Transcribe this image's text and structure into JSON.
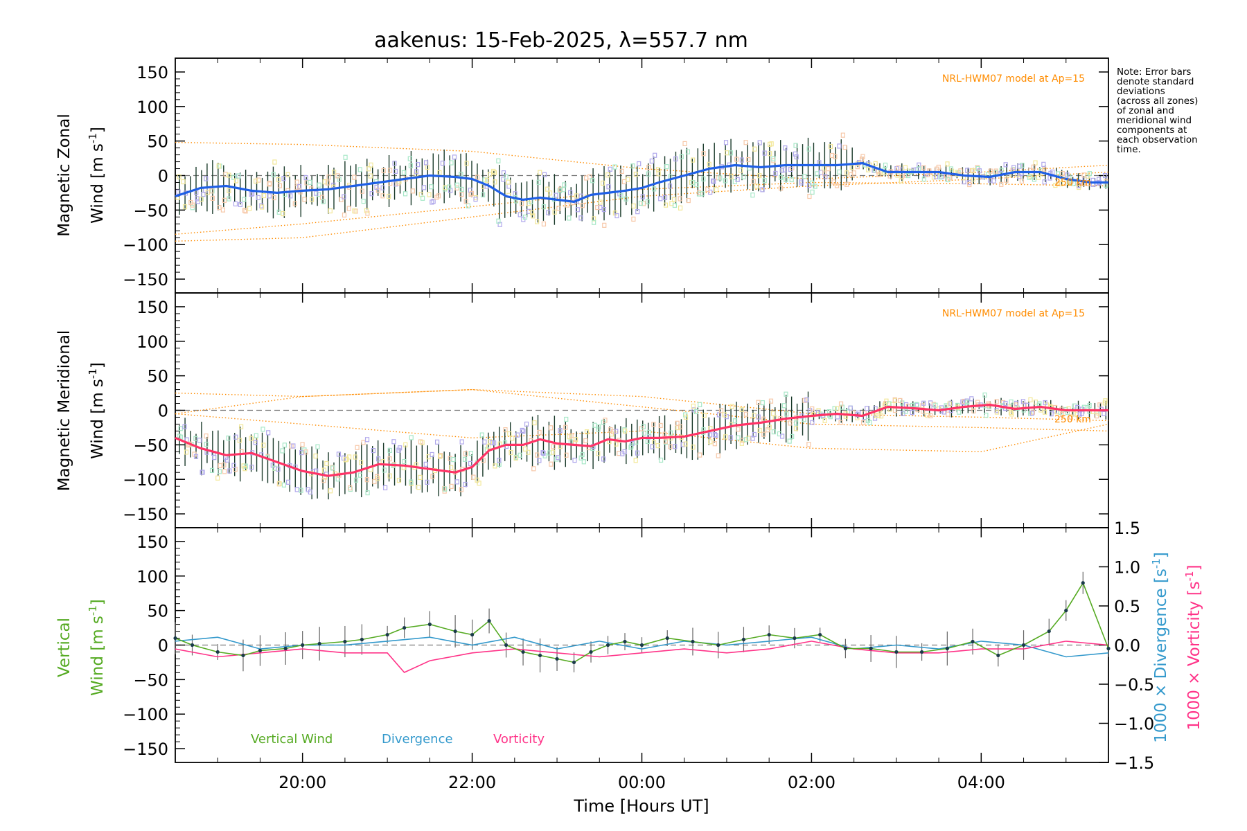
{
  "chart_data": [
    {
      "type": "line",
      "panel": "zonal",
      "title": "aakenus: 15-Feb-2025, λ=557.7 nm",
      "ylabel_line1": "Magnetic Zonal",
      "ylabel_line2": "Wind [m s",
      "ylabel_sup": "-1",
      "ylabel_end": "]",
      "ylim": [
        -170,
        170
      ],
      "yticks": [
        "150",
        "100",
        "50",
        "0",
        "−50",
        "−100",
        "−150"
      ],
      "ytick_values": [
        150,
        100,
        50,
        0,
        -50,
        -100,
        -150
      ],
      "xlim": [
        -5.5,
        5.5
      ],
      "model_label": "NRL-HWM07 model at Ap=15",
      "series": [
        {
          "name": "Zonal wind (mean)",
          "color": "#1f5fe6",
          "x": [
            -5.5,
            -5.2,
            -4.9,
            -4.6,
            -4.3,
            -4.0,
            -3.7,
            -3.4,
            -3.1,
            -2.8,
            -2.5,
            -2.2,
            -2.0,
            -1.8,
            -1.6,
            -1.4,
            -1.2,
            -1.0,
            -0.8,
            -0.6,
            -0.4,
            -0.2,
            0.0,
            0.2,
            0.5,
            0.8,
            1.1,
            1.4,
            1.7,
            2.0,
            2.3,
            2.6,
            2.9,
            3.2,
            3.5,
            3.8,
            4.1,
            4.4,
            4.7,
            5.0,
            5.3,
            5.5
          ],
          "y": [
            -30,
            -18,
            -15,
            -22,
            -25,
            -22,
            -20,
            -15,
            -10,
            -5,
            0,
            -2,
            -5,
            -15,
            -30,
            -35,
            -32,
            -35,
            -38,
            -28,
            -25,
            -22,
            -18,
            -10,
            0,
            10,
            15,
            12,
            15,
            15,
            15,
            18,
            5,
            5,
            5,
            0,
            -2,
            5,
            5,
            -5,
            -10,
            -10
          ]
        },
        {
          "name": "Model zonal curves",
          "color": "#ff8c00",
          "style": "dotted",
          "curves": [
            {
              "x": [
                -5.5,
                -4,
                -2,
                0,
                2,
                4,
                5.5
              ],
              "y": [
                48,
                45,
                35,
                10,
                -5,
                5,
                15
              ]
            },
            {
              "x": [
                -5.5,
                -4,
                -2,
                0,
                2,
                4,
                5.5
              ],
              "y": [
                -85,
                -70,
                -45,
                -20,
                -10,
                -12,
                -15
              ]
            },
            {
              "x": [
                -5.5,
                -4,
                -2,
                0,
                2,
                4,
                5.5
              ],
              "y": [
                -95,
                -90,
                -60,
                -30,
                -15,
                -5,
                5
              ]
            }
          ]
        }
      ]
    },
    {
      "type": "line",
      "panel": "meridional",
      "ylabel_line1": "Magnetic Meridional",
      "ylabel_line2": "Wind [m s",
      "ylabel_sup": "-1",
      "ylabel_end": "]",
      "ylim": [
        -170,
        170
      ],
      "yticks": [
        "150",
        "100",
        "50",
        "0",
        "−50",
        "−100",
        "−150"
      ],
      "ytick_values": [
        150,
        100,
        50,
        0,
        -50,
        -100,
        -150
      ],
      "model_label": "NRL-HWM07 model at Ap=15",
      "series": [
        {
          "name": "Meridional wind (mean)",
          "color": "#ff3366",
          "x": [
            -5.5,
            -5.2,
            -4.9,
            -4.6,
            -4.3,
            -4.0,
            -3.7,
            -3.4,
            -3.1,
            -2.8,
            -2.5,
            -2.2,
            -2.0,
            -1.8,
            -1.6,
            -1.4,
            -1.2,
            -1.0,
            -0.8,
            -0.6,
            -0.4,
            -0.2,
            0.0,
            0.2,
            0.5,
            0.8,
            1.1,
            1.4,
            1.7,
            2.0,
            2.3,
            2.6,
            2.9,
            3.2,
            3.5,
            3.8,
            4.1,
            4.4,
            4.7,
            5.0,
            5.3,
            5.5
          ],
          "y": [
            -40,
            -55,
            -65,
            -62,
            -75,
            -88,
            -95,
            -90,
            -78,
            -80,
            -85,
            -90,
            -82,
            -58,
            -50,
            -50,
            -42,
            -48,
            -50,
            -52,
            -42,
            -45,
            -40,
            -40,
            -38,
            -30,
            -22,
            -18,
            -12,
            -8,
            -5,
            -8,
            5,
            3,
            0,
            5,
            8,
            2,
            5,
            0,
            0,
            0
          ]
        },
        {
          "name": "Model meridional curves",
          "color": "#ff8c00",
          "style": "dotted",
          "curves": [
            {
              "x": [
                -5.5,
                -4,
                -2,
                0,
                2,
                4,
                5.5
              ],
              "y": [
                25,
                20,
                30,
                5,
                -20,
                -25,
                -30
              ]
            },
            {
              "x": [
                -5.5,
                -4,
                -2,
                0,
                2,
                4,
                5.5
              ],
              "y": [
                -5,
                20,
                30,
                20,
                -5,
                -10,
                -15
              ]
            },
            {
              "x": [
                -5.5,
                -4,
                -2,
                0,
                2,
                4,
                5.5
              ],
              "y": [
                -5,
                -20,
                -40,
                -30,
                -55,
                -60,
                -20
              ]
            }
          ]
        }
      ]
    },
    {
      "type": "line",
      "panel": "vertical",
      "ylabel_line1": "Vertical",
      "ylabel_line2": "Wind [m s",
      "ylabel_sup": "-1",
      "ylabel_end": "]",
      "ylim": [
        -170,
        170
      ],
      "yticks": [
        "150",
        "100",
        "50",
        "0",
        "−50",
        "−100",
        "−150"
      ],
      "ytick_values": [
        150,
        100,
        50,
        0,
        -50,
        -100,
        -150
      ],
      "y2lim": [
        -1.5,
        1.5
      ],
      "y2ticks": [
        "1.5",
        "1.0",
        "0.5",
        "0.0",
        "−0.5",
        "−1.0",
        "−1.5"
      ],
      "y2tick_values": [
        1.5,
        1.0,
        0.5,
        0.0,
        -0.5,
        -1.0,
        -1.5
      ],
      "y2label_a": "1000 × Divergence [s",
      "y2label_b": "1000 × Vorticity [s",
      "y2label_sup": "-1",
      "y2label_end": "]",
      "xlabel": "Time [Hours UT]",
      "xticks": [
        "20:00",
        "22:00",
        "00:00",
        "02:00",
        "04:00"
      ],
      "xtick_values": [
        -4,
        -2,
        0,
        2,
        4
      ],
      "legend": [
        "Vertical Wind",
        "Divergence",
        "Vorticity"
      ],
      "series": [
        {
          "name": "Vertical Wind",
          "color": "#55aa22",
          "x": [
            -5.5,
            -5.3,
            -5.0,
            -4.7,
            -4.5,
            -4.2,
            -4.0,
            -3.8,
            -3.5,
            -3.3,
            -3.0,
            -2.8,
            -2.5,
            -2.2,
            -2.0,
            -1.8,
            -1.6,
            -1.4,
            -1.2,
            -1.0,
            -0.8,
            -0.6,
            -0.4,
            -0.2,
            0.0,
            0.3,
            0.6,
            0.9,
            1.2,
            1.5,
            1.8,
            2.1,
            2.4,
            2.7,
            3.0,
            3.3,
            3.6,
            3.9,
            4.2,
            4.5,
            4.8,
            5.0,
            5.2,
            5.5
          ],
          "y": [
            10,
            0,
            -10,
            -15,
            -8,
            -5,
            0,
            2,
            5,
            8,
            15,
            25,
            30,
            20,
            15,
            35,
            0,
            -10,
            -15,
            -20,
            -25,
            -10,
            0,
            5,
            0,
            10,
            5,
            0,
            8,
            15,
            10,
            15,
            -5,
            -5,
            -10,
            -10,
            -5,
            5,
            -15,
            0,
            20,
            50,
            90,
            -5
          ]
        },
        {
          "name": "Divergence",
          "color": "#3399cc",
          "x": [
            -5.5,
            -5.0,
            -4.5,
            -4.0,
            -3.5,
            -3.0,
            -2.5,
            -2.0,
            -1.5,
            -1.0,
            -0.5,
            0.0,
            0.5,
            1.0,
            1.5,
            2.0,
            2.5,
            3.0,
            3.5,
            4.0,
            4.5,
            5.0,
            5.5
          ],
          "y": [
            0.05,
            0.1,
            -0.05,
            0.0,
            0.0,
            0.05,
            0.1,
            0.0,
            0.1,
            -0.05,
            0.05,
            -0.05,
            0.05,
            0.0,
            0.05,
            0.1,
            -0.05,
            0.0,
            -0.05,
            0.05,
            0.0,
            -0.15,
            -0.1
          ]
        },
        {
          "name": "Vorticity",
          "color": "#ff3388",
          "x": [
            -5.5,
            -5.0,
            -4.5,
            -4.0,
            -3.5,
            -3.0,
            -2.8,
            -2.5,
            -2.0,
            -1.5,
            -1.0,
            -0.5,
            0.0,
            0.5,
            1.0,
            1.5,
            2.0,
            2.5,
            3.0,
            3.5,
            4.0,
            4.5,
            5.0,
            5.5
          ],
          "y": [
            -0.05,
            -0.15,
            -0.1,
            -0.05,
            -0.1,
            -0.1,
            -0.35,
            -0.2,
            -0.1,
            -0.05,
            -0.1,
            -0.15,
            -0.1,
            -0.05,
            -0.1,
            -0.05,
            0.05,
            -0.05,
            -0.1,
            -0.1,
            -0.05,
            -0.05,
            0.05,
            0.0
          ]
        }
      ]
    }
  ],
  "note": [
    "Note: Error bars",
    "denote standard",
    "deviations",
    "(across all zones)",
    "of zonal and",
    "meridional wind",
    "components at",
    "each observation",
    "time."
  ],
  "model_height_labels": [
    "250 km",
    "250 km"
  ]
}
